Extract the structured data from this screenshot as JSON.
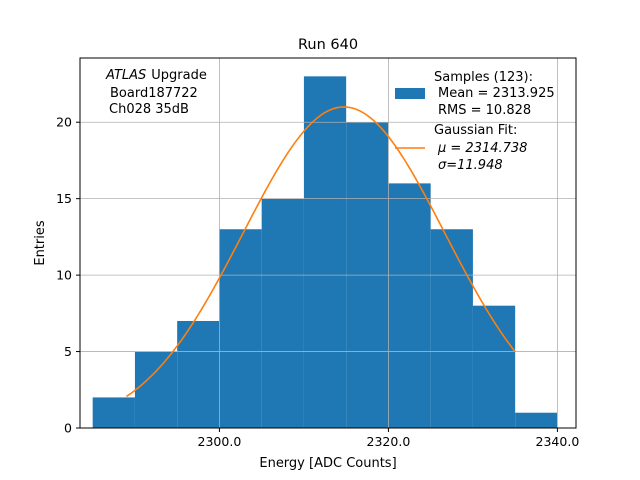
{
  "chart_data": {
    "type": "bar",
    "title": "Run 640",
    "xlabel": "Energy [ADC Counts]",
    "ylabel": "Entries",
    "xlim": [
      2283.5,
      2342.2
    ],
    "ylim": [
      0,
      24.2
    ],
    "grid": true,
    "x_ticks": [
      2300,
      2320,
      2340
    ],
    "x_tick_labels": [
      "2300.0",
      "2320.0",
      "2340.0"
    ],
    "y_ticks": [
      0,
      5,
      10,
      15,
      20
    ],
    "y_tick_labels": [
      "0",
      "5",
      "10",
      "15",
      "20"
    ],
    "bin_edges": [
      2285,
      2290,
      2295,
      2300,
      2305,
      2310,
      2315,
      2320,
      2325,
      2330,
      2335,
      2340
    ],
    "values": [
      2,
      5,
      7,
      13,
      15,
      23,
      20,
      16,
      13,
      8,
      1
    ],
    "fit": {
      "type": "gaussian",
      "mu": 2314.738,
      "sigma": 11.948,
      "amplitude": 21.0,
      "x_range": [
        2289,
        2335
      ]
    },
    "colors": {
      "histogram": "#1f77b4",
      "fit": "#ff7f0e",
      "grid": "#b0b0b0"
    },
    "annotation": {
      "atlas": "ATLAS",
      "upgrade": "Upgrade",
      "board": "Board187722",
      "channel": "Ch028 35dB"
    },
    "legend": {
      "placement": "top-right",
      "samples_label": "Samples (123):",
      "mean_label": "Mean = 2313.925",
      "rms_label": "RMS = 10.828",
      "fit_label": "Gaussian Fit:",
      "mu_label": "μ = 2314.738",
      "sigma_label": "σ=11.948"
    }
  }
}
